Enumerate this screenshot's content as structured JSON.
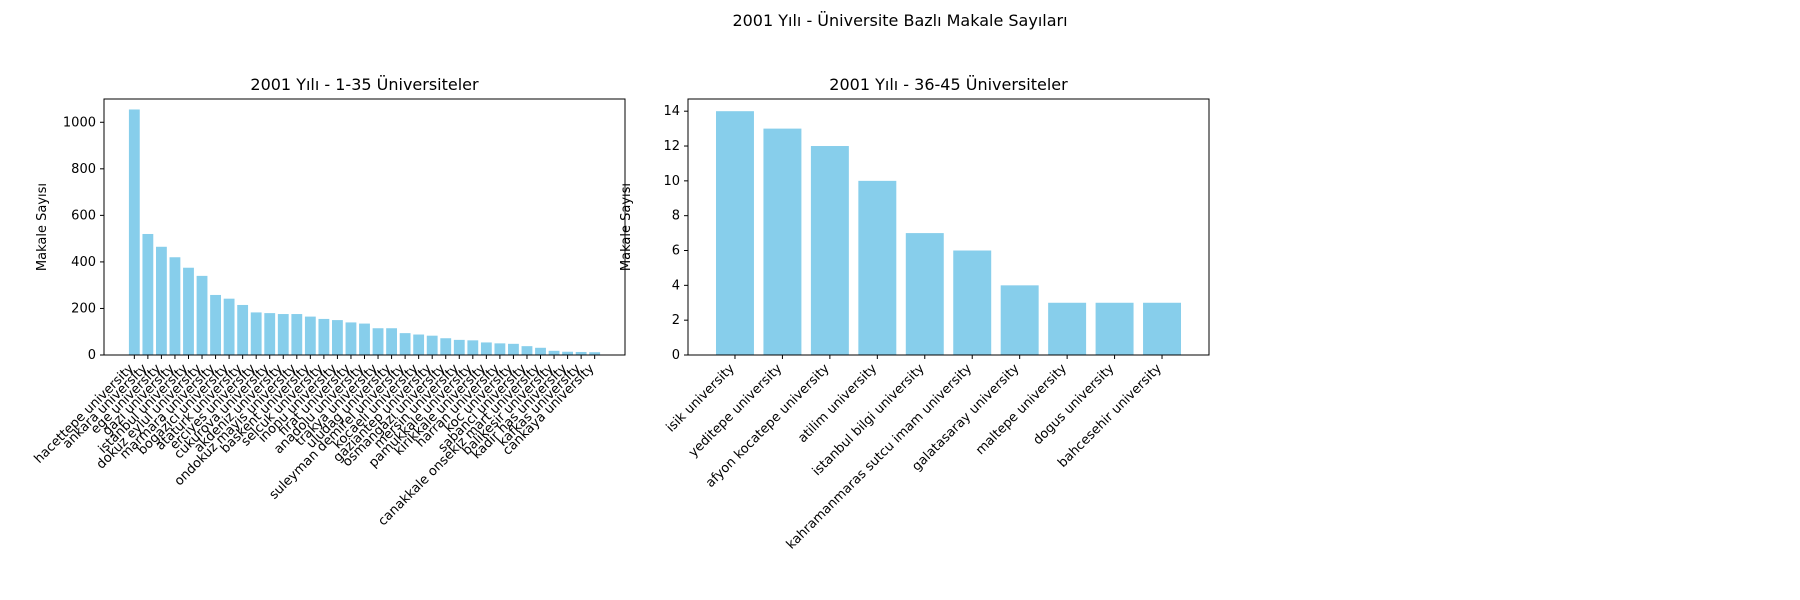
{
  "figure": {
    "suptitle": "2001 Yılı - Üniversite Bazlı Makale Sayıları"
  },
  "colors": {
    "bar": "#87ceeb",
    "axis": "#000000"
  },
  "chart_data": [
    {
      "type": "bar",
      "title": "2001 Yılı - 1-35 Üniversiteler",
      "xlabel": "",
      "ylabel": "Makale Sayısı",
      "ylim": [
        0,
        1100
      ],
      "yticks": [
        0,
        200,
        400,
        600,
        800,
        1000
      ],
      "grid": false,
      "categories": [
        "hacettepe university",
        "ankara university",
        "ege university",
        "gazi university",
        "istanbul university",
        "dokuz eylul university",
        "marmara university",
        "bogazici university",
        "ataturk university",
        "erciyes university",
        "cukurova university",
        "akdeniz university",
        "ondokuz mayis university",
        "baskent university",
        "selcuk university",
        "inonu university",
        "firat university",
        "anadolu university",
        "trakya university",
        "uludag university",
        "suleyman demirel university",
        "kocaeli university",
        "gaziantep university",
        "osmangazi university",
        "mersin university",
        "pamukkale university",
        "kirikkale university",
        "harran university",
        "koc university",
        "sabanci university",
        "canakkale onsekiz mart university",
        "balikesir university",
        "kadir has university",
        "kafkas university",
        "cankaya university"
      ],
      "values": [
        1055,
        520,
        465,
        420,
        375,
        340,
        258,
        242,
        215,
        183,
        180,
        176,
        176,
        165,
        155,
        150,
        140,
        135,
        115,
        115,
        94,
        88,
        83,
        72,
        65,
        63,
        54,
        50,
        48,
        38,
        31,
        18,
        14,
        13,
        12
      ]
    },
    {
      "type": "bar",
      "title": "2001 Yılı - 36-45 Üniversiteler",
      "xlabel": "",
      "ylabel": "Makale Sayısı",
      "ylim": [
        0,
        14.7
      ],
      "yticks": [
        0,
        2,
        4,
        6,
        8,
        10,
        12,
        14
      ],
      "grid": false,
      "categories": [
        "isik university",
        "yeditepe university",
        "afyon kocatepe university",
        "atilim university",
        "istanbul bilgi university",
        "kahramanmaras sutcu imam university",
        "galatasaray university",
        "maltepe university",
        "dogus university",
        "bahcesehir university"
      ],
      "values": [
        14,
        13,
        12,
        10,
        7,
        6,
        4,
        3,
        3,
        3
      ]
    }
  ]
}
